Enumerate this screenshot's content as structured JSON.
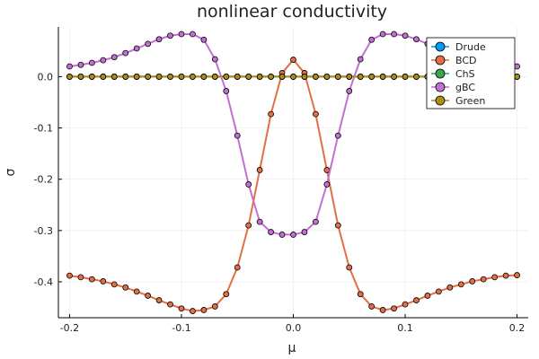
{
  "chart_data": {
    "type": "line",
    "title": "nonlinear conductivity",
    "xlabel": "μ",
    "ylabel": "σ",
    "xlim": [
      -0.21,
      0.21
    ],
    "ylim": [
      -0.47,
      0.097
    ],
    "xticks": [
      -0.2,
      -0.1,
      0.0,
      0.1,
      0.2
    ],
    "xtick_labels": [
      "-0.2",
      "-0.1",
      "0.0",
      "0.1",
      "0.2"
    ],
    "yticks": [
      -0.4,
      -0.3,
      -0.2,
      -0.1,
      0.0
    ],
    "ytick_labels": [
      "-0.4",
      "-0.3",
      "-0.2",
      "-0.1",
      "0.0"
    ],
    "grid": true,
    "legend_position": "top-right",
    "x": [
      -0.2,
      -0.19,
      -0.18,
      -0.17,
      -0.16,
      -0.15,
      -0.14,
      -0.13,
      -0.12,
      -0.11,
      -0.1,
      -0.09,
      -0.08,
      -0.07,
      -0.06,
      -0.05,
      -0.04,
      -0.03,
      -0.02,
      -0.01,
      0.0,
      0.01,
      0.02,
      0.03,
      0.04,
      0.05,
      0.06,
      0.07,
      0.08,
      0.09,
      0.1,
      0.11,
      0.12,
      0.13,
      0.14,
      0.15,
      0.16,
      0.17,
      0.18,
      0.19,
      0.2
    ],
    "series": [
      {
        "name": "Drude",
        "color": "#009AFA",
        "values": [
          0,
          0,
          0,
          0,
          0,
          0,
          0,
          0,
          0,
          0,
          0,
          0,
          0,
          0,
          0,
          0,
          0,
          0,
          0,
          0,
          0,
          0,
          0,
          0,
          0,
          0,
          0,
          0,
          0,
          0,
          0,
          0,
          0,
          0,
          0,
          0,
          0,
          0,
          0,
          0,
          0
        ]
      },
      {
        "name": "BCD",
        "color": "#E26F46",
        "values": [
          -0.388,
          -0.391,
          -0.395,
          -0.399,
          -0.405,
          -0.411,
          -0.419,
          -0.427,
          -0.436,
          -0.444,
          -0.452,
          -0.457,
          -0.455,
          -0.448,
          -0.424,
          -0.372,
          -0.29,
          -0.182,
          -0.073,
          0.007,
          0.033,
          0.007,
          -0.073,
          -0.182,
          -0.29,
          -0.372,
          -0.424,
          -0.448,
          -0.455,
          -0.452,
          -0.444,
          -0.436,
          -0.427,
          -0.419,
          -0.411,
          -0.405,
          -0.399,
          -0.395,
          -0.391,
          -0.388,
          -0.387
        ]
      },
      {
        "name": "ChS",
        "color": "#3DA44D",
        "values": [
          0,
          0,
          0,
          0,
          0,
          0,
          0,
          0,
          0,
          0,
          0,
          0,
          0,
          0,
          0,
          0,
          0,
          0,
          0,
          0,
          0,
          0,
          0,
          0,
          0,
          0,
          0,
          0,
          0,
          0,
          0,
          0,
          0,
          0,
          0,
          0,
          0,
          0,
          0,
          0,
          0
        ]
      },
      {
        "name": "gBC",
        "color": "#C271D2",
        "values": [
          0.02,
          0.023,
          0.027,
          0.032,
          0.038,
          0.046,
          0.055,
          0.064,
          0.073,
          0.08,
          0.083,
          0.083,
          0.072,
          0.034,
          -0.028,
          -0.115,
          -0.21,
          -0.283,
          -0.303,
          -0.308,
          -0.308,
          -0.303,
          -0.283,
          -0.21,
          -0.115,
          -0.028,
          0.034,
          0.072,
          0.083,
          0.083,
          0.08,
          0.073,
          0.064,
          0.055,
          0.046,
          0.038,
          0.032,
          0.027,
          0.023,
          0.02,
          0.02
        ]
      },
      {
        "name": "Green",
        "color": "#AC8D18",
        "values": [
          0,
          0,
          0,
          0,
          0,
          0,
          0,
          0,
          0,
          0,
          0,
          0,
          0,
          0,
          0,
          0,
          0,
          0,
          0,
          0,
          0,
          0,
          0,
          0,
          0,
          0,
          0,
          0,
          0,
          0,
          0,
          0,
          0,
          0,
          0,
          0,
          0,
          0,
          0,
          0,
          0
        ]
      }
    ]
  }
}
